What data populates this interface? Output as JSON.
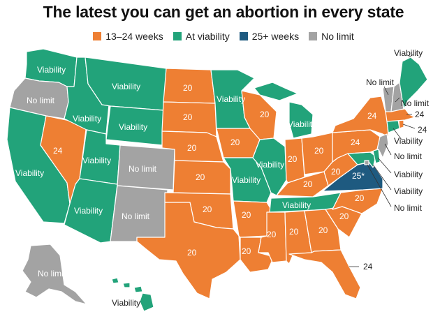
{
  "title": "The latest you can get an abortion in every state",
  "legend": [
    {
      "label": "13–24 weeks",
      "color": "#ee7f33"
    },
    {
      "label": "At viability",
      "color": "#22a37a"
    },
    {
      "label": "25+ weeks",
      "color": "#1e5a80"
    },
    {
      "label": "No limit",
      "color": "#a3a3a3"
    }
  ],
  "map_labels": {
    "viability": "Viability",
    "no_limit": "No limit",
    "w20": "20",
    "w24": "24",
    "w25": "25*"
  }
}
